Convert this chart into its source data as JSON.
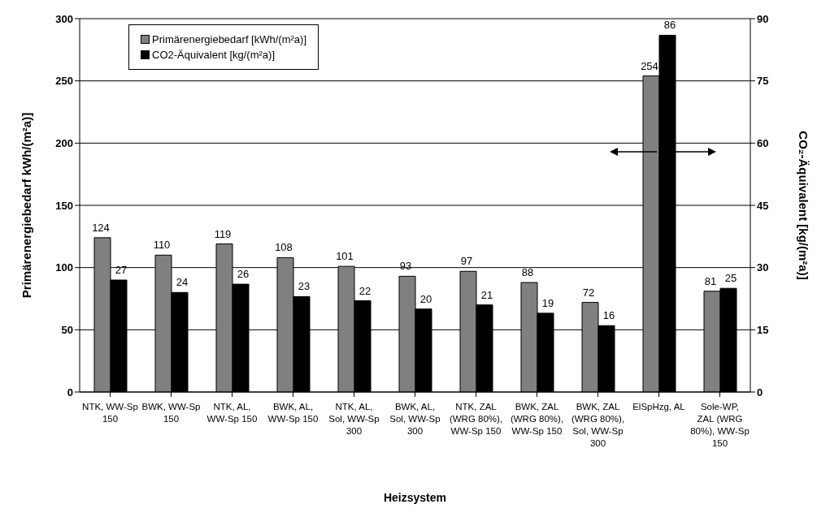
{
  "chart_data": {
    "type": "bar",
    "xlabel": "Heizsystem",
    "ylabel": "Primärenergiebedarf kWh/(m²a)]",
    "y2label": "CO₂-Äquivalent [kg/(m²a)]",
    "categories": [
      "NTK, WW-Sp 150",
      "BWK, WW-Sp 150",
      "NTK, AL, WW-Sp 150",
      "BWK, AL, WW-Sp 150",
      "NTK, AL, Sol, WW-Sp 300",
      "BWK, AL, Sol, WW-Sp 300",
      "NTK, ZAL (WRG 80%), WW-Sp 150",
      "BWK, ZAL (WRG 80%), WW-Sp 150",
      "BWK, ZAL (WRG 80%), Sol, WW-Sp 300",
      "ElSpHzg, AL",
      "Sole-WP, ZAL (WRG 80%), WW-Sp 150"
    ],
    "series": [
      {
        "name": "Primärenergiebedarf [kWh/(m²a)]",
        "color": "#808080",
        "values": [
          124,
          110,
          119,
          108,
          101,
          93,
          97,
          88,
          72,
          254,
          81
        ]
      },
      {
        "name": "CO2-Äquivalent [kg/(m²a)]",
        "color": "#000000",
        "axis": "y2",
        "values": [
          27,
          24,
          26,
          23,
          22,
          20,
          21,
          19,
          16,
          86,
          25
        ]
      }
    ],
    "ylim": [
      0,
      300
    ],
    "yticks": [
      0,
      50,
      100,
      150,
      200,
      250,
      300
    ],
    "y2lim": [
      0,
      90
    ],
    "y2ticks": [
      0,
      15,
      30,
      45,
      60,
      75,
      90
    ],
    "grid": "y",
    "legend": "top left",
    "data_labels": true
  }
}
